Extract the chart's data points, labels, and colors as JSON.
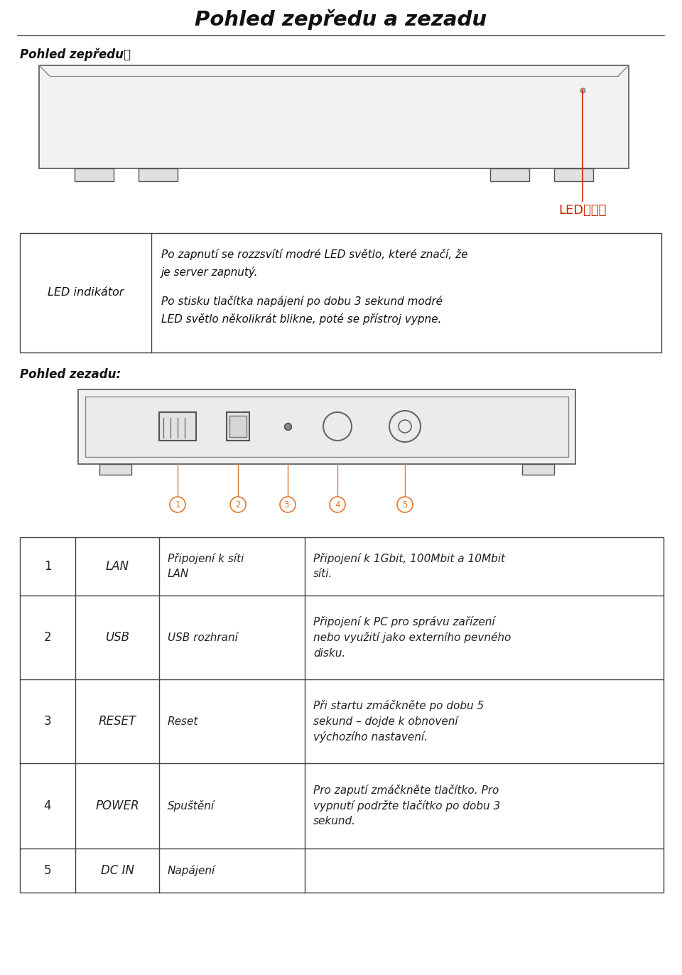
{
  "title": "Pohled zepředu a zezadu",
  "subtitle_front": "Pohled zepředu：",
  "subtitle_back": "Pohled zezadu:",
  "led_label": "LED指示灯",
  "led_color": "#cc2200",
  "table1_col1": "LED indikátor",
  "table1_lines": [
    "Po zapnutí se rozssvítí modré LED světlo, které značí, že",
    "je server zapnutý.",
    "Po stisku tlačítka napájení po dobu 3 sekund modré",
    "LED světlo několikrát blikne, poté se přístroj vypne."
  ],
  "port_numbers": [
    "1",
    "2",
    "3·",
    "4",
    "5"
  ],
  "table2": [
    {
      "num": "1",
      "name": "LAN",
      "desc": "Připojení k síti\nLAN",
      "detail": "Připojení k 1Gbit, 100Mbit a 10Mbit\nsíti."
    },
    {
      "num": "2",
      "name": "USB",
      "desc": "USB rozhraní",
      "detail": "Připojení k PC pro správu zařízení\nnebo využití jako externího pevného\ndisku."
    },
    {
      "num": "3",
      "name": "RESET",
      "desc": "Reset",
      "detail": "Při startu zmáčkněte po dobu 5\nsekund – dojde k obnovení\nvýchozího nastavení."
    },
    {
      "num": "4",
      "name": "POWER",
      "desc": "Spuštění",
      "detail": "Pro zaputí zmáčkněte tlačítko. Pro\nvypnutí podržte tlačítko po dobu 3\nsekund."
    },
    {
      "num": "5",
      "name": "DC IN",
      "desc": "Napájení",
      "detail": ""
    }
  ],
  "bg_color": "#ffffff",
  "orange_color": "#e07830",
  "line_color": "#444444"
}
